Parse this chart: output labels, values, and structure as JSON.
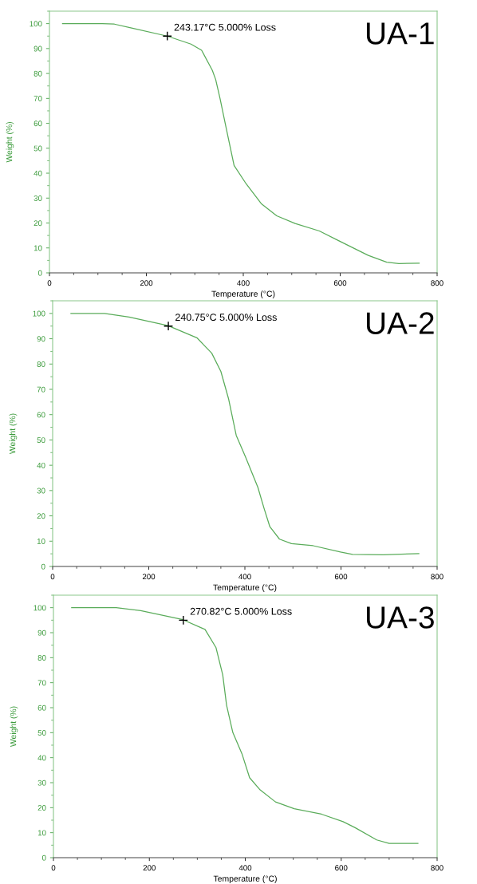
{
  "chart_data": [
    {
      "type": "line",
      "title": "UA-1",
      "xlabel": "Temperature (°C)",
      "ylabel": "Weight (%)",
      "xlim": [
        0,
        800
      ],
      "ylim": [
        0,
        105
      ],
      "xticks": [
        0,
        200,
        400,
        600,
        800
      ],
      "yticks": [
        0,
        10,
        20,
        30,
        40,
        50,
        60,
        70,
        80,
        90,
        100
      ],
      "grid": false,
      "marker": "none",
      "annotations": [
        {
          "text": "243.17°C 5.000% Loss",
          "x": 243.17,
          "y": 95
        }
      ],
      "series": [
        {
          "color": "#5aac5a",
          "x": [
            27,
            109,
            134,
            166,
            243,
            292,
            314,
            336,
            343,
            352,
            365,
            381,
            406,
            437,
            469,
            507,
            557,
            595,
            658,
            696,
            721,
            763
          ],
          "values": [
            100,
            100,
            99.8,
            98.4,
            95,
            91.8,
            89.3,
            81.3,
            77.6,
            70,
            57.8,
            43.1,
            35.7,
            27.8,
            22.9,
            19.8,
            16.8,
            13.1,
            7,
            4.3,
            3.7,
            3.9
          ]
        },
        {
          "type": "scatter",
          "marker": "cross",
          "color": "#000000",
          "x": [
            243.17
          ],
          "values": [
            95
          ]
        }
      ]
    },
    {
      "type": "line",
      "title": "UA-2",
      "xlabel": "Temperature (°C)",
      "ylabel": "Weight (%)",
      "xlim": [
        0,
        800
      ],
      "ylim": [
        0,
        105
      ],
      "xticks": [
        0,
        200,
        400,
        600,
        800
      ],
      "yticks": [
        0,
        10,
        20,
        30,
        40,
        50,
        60,
        70,
        80,
        90,
        100
      ],
      "grid": false,
      "marker": "none",
      "annotations": [
        {
          "text": "240.75°C 5.000% Loss",
          "x": 240.75,
          "y": 95
        }
      ],
      "series": [
        {
          "color": "#5aac5a",
          "x": [
            38,
            108,
            159,
            240,
            300,
            331,
            350,
            366,
            382,
            401,
            427,
            440,
            452,
            472,
            497,
            542,
            599,
            624,
            688,
            762
          ],
          "values": [
            100,
            100,
            98.6,
            95.2,
            90.4,
            84.3,
            77.1,
            66.3,
            51.8,
            43.4,
            31.3,
            22.9,
            15.7,
            10.8,
            9,
            8.2,
            5.7,
            4.8,
            4.6,
            5.1
          ]
        },
        {
          "type": "scatter",
          "marker": "cross",
          "color": "#000000",
          "x": [
            240.75
          ],
          "values": [
            95
          ]
        }
      ]
    },
    {
      "type": "line",
      "title": "UA-3",
      "xlabel": "Temperature (°C)",
      "ylabel": "Weight (%)",
      "xlim": [
        0,
        800
      ],
      "ylim": [
        0,
        105
      ],
      "xticks": [
        0,
        200,
        400,
        600,
        800
      ],
      "yticks": [
        0,
        10,
        20,
        30,
        40,
        50,
        60,
        70,
        80,
        90,
        100
      ],
      "grid": false,
      "marker": "none",
      "annotations": [
        {
          "text": "270.82°C 5.000% Loss",
          "x": 270.82,
          "y": 95
        }
      ],
      "series": [
        {
          "color": "#5aac5a",
          "x": [
            38,
            131,
            182,
            270,
            316,
            339,
            353,
            361,
            374,
            393,
            409,
            431,
            463,
            502,
            559,
            604,
            629,
            674,
            700,
            760
          ],
          "values": [
            100,
            100,
            98.8,
            95.2,
            91.3,
            84,
            73.1,
            61,
            50.1,
            41.6,
            32,
            27.1,
            22.3,
            19.6,
            17.4,
            14.4,
            12,
            7.1,
            5.7,
            5.7
          ]
        },
        {
          "type": "scatter",
          "marker": "cross",
          "color": "#000000",
          "x": [
            270.82
          ],
          "values": [
            95
          ]
        }
      ]
    }
  ]
}
